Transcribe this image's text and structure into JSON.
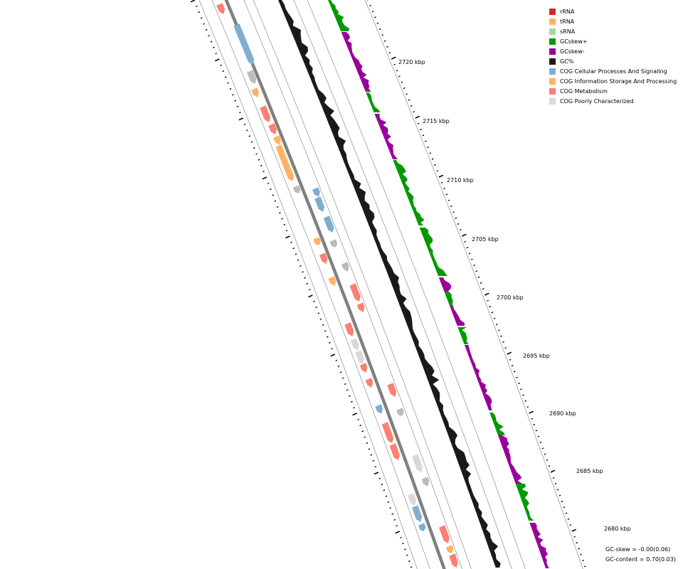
{
  "colors": {
    "rRNA": "#d62728",
    "tRNA": "#ffb366",
    "sRNA": "#a1d99b",
    "gcskew_pos": "#009900",
    "gcskew_neg": "#990099",
    "gc_content": "#1a1a1a",
    "cog_cellular": "#7faed0",
    "cog_information": "#fdb462",
    "cog_metabolism": "#fb8072",
    "cog_poorly": "#d9d9d9",
    "backbone": "#808080",
    "small_feature": "#bbbbbb"
  },
  "legend": [
    {
      "label": "rRNA",
      "color": "#d62728"
    },
    {
      "label": "tRNA",
      "color": "#ffb366"
    },
    {
      "label": "sRNA",
      "color": "#a1d99b"
    },
    {
      "label": "GCskew+",
      "color": "#009900"
    },
    {
      "label": "GCskew-",
      "color": "#990099"
    },
    {
      "label": "GC%",
      "color": "#1a1a1a"
    },
    {
      "label": "COG Cellular Processes And Signaling",
      "color": "#7faed0"
    },
    {
      "label": "COG Information Storage And Processing",
      "color": "#fdb462"
    },
    {
      "label": "COG Metabolism",
      "color": "#fb8072"
    },
    {
      "label": "COG Poorly Characterized",
      "color": "#d9d9d9"
    }
  ],
  "scale": {
    "unit": "kbp",
    "labels": [
      "2720 kbp",
      "2715 kbp",
      "2710 kbp",
      "2705 kbp",
      "2700 kbp",
      "2695 kbp",
      "2690 kbp",
      "2685 kbp",
      "2680 kbp"
    ]
  },
  "stats": {
    "gc_skew": "GC-skew = -0.00(0.06)",
    "gc_content": "GC-content = 0.70(0.03)"
  }
}
